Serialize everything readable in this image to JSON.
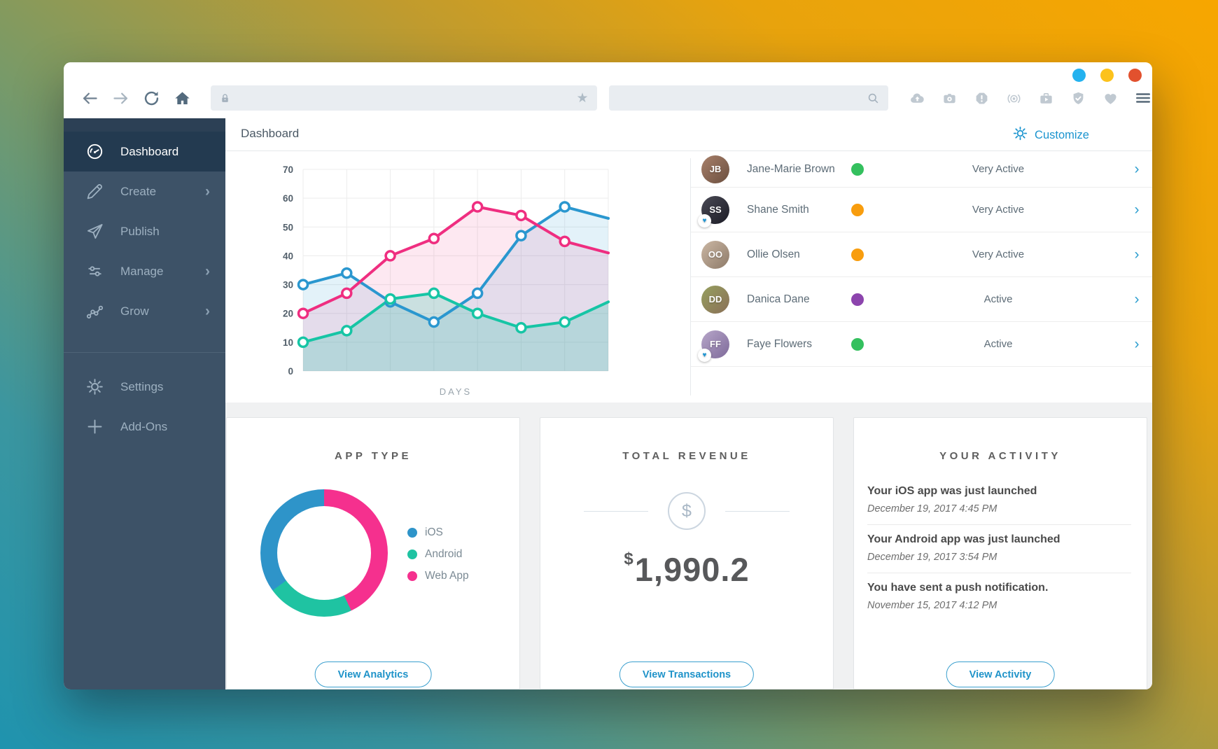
{
  "window_controls": {
    "dots": [
      {
        "name": "blue",
        "color": "#24b2ef"
      },
      {
        "name": "yellow",
        "color": "#fcc21c"
      },
      {
        "name": "red",
        "color": "#e2512e"
      }
    ]
  },
  "browser": {
    "address_bar": {
      "value": "",
      "left_icon": "lock-icon",
      "right_icon": "bookmark-star-icon"
    },
    "search_bar": {
      "value": "",
      "icon": "search-icon"
    },
    "toolbar_icons": [
      "cloud-upload-icon",
      "camera-icon",
      "alert-icon",
      "broadcast-icon",
      "media-briefcase-icon",
      "shield-check-icon",
      "heart-icon"
    ],
    "menu_icon": "hamburger-menu-icon"
  },
  "sidebar": {
    "items": [
      {
        "label": "Dashboard",
        "icon": "gauge-icon",
        "active": true,
        "chevron": false
      },
      {
        "label": "Create",
        "icon": "pencil-icon",
        "active": false,
        "chevron": true
      },
      {
        "label": "Publish",
        "icon": "paper-plane-icon",
        "active": false,
        "chevron": false
      },
      {
        "label": "Manage",
        "icon": "sliders-icon",
        "active": false,
        "chevron": true
      },
      {
        "label": "Grow",
        "icon": "growth-icon",
        "active": false,
        "chevron": true
      }
    ],
    "footer_items": [
      {
        "label": "Settings",
        "icon": "gear-icon",
        "chevron": false
      },
      {
        "label": "Add-Ons",
        "icon": "plus-icon",
        "chevron": false
      }
    ]
  },
  "header": {
    "title": "Dashboard",
    "customize": {
      "label": "Customize",
      "icon": "gear-icon",
      "color": "#1b94cf"
    }
  },
  "users": [
    {
      "name": "Jane-Marie Brown",
      "status": "Very Active",
      "status_color": "#34c05e",
      "initials": "JB",
      "avatar_colors": [
        "#a8806a",
        "#6b4f3f"
      ],
      "favorite": false
    },
    {
      "name": "Shane Smith",
      "status": "Very Active",
      "status_color": "#f89d0e",
      "initials": "SS",
      "avatar_colors": [
        "#4a4a55",
        "#1c1c26"
      ],
      "favorite": true
    },
    {
      "name": "Ollie Olsen",
      "status": "Very Active",
      "status_color": "#f89d0e",
      "initials": "OO",
      "avatar_colors": [
        "#cbb7a4",
        "#8d7a68"
      ],
      "favorite": false
    },
    {
      "name": "Danica Dane",
      "status": "Active",
      "status_color": "#8c44ad",
      "initials": "DD",
      "avatar_colors": [
        "#96a05f",
        "#8a6f57"
      ],
      "favorite": false
    },
    {
      "name": "Faye Flowers",
      "status": "Active",
      "status_color": "#34c05e",
      "initials": "FF",
      "avatar_colors": [
        "#b7a6c9",
        "#7e6a9a"
      ],
      "favorite": true
    }
  ],
  "cards": {
    "app_type": {
      "title": "APP TYPE",
      "button": "View Analytics"
    },
    "revenue": {
      "title": "TOTAL REVENUE",
      "currency": "$",
      "amount": "1,990.2",
      "dollar_icon": "dollar-circle-icon",
      "button": "View Transactions"
    },
    "activity": {
      "title": "YOUR ACTIVITY",
      "items": [
        {
          "text": "Your iOS app was just launched",
          "date": "December 19, 2017 4:45 PM"
        },
        {
          "text": "Your Android app was just launched",
          "date": "December 19, 2017 3:54 PM"
        },
        {
          "text": "You have sent a push notification.",
          "date": "November 15, 2017 4:12 PM"
        }
      ],
      "button": "View Activity"
    }
  },
  "chart_data": [
    {
      "type": "line",
      "title": "",
      "xlabel": "DAYS",
      "ylabel": "",
      "ylim": [
        0,
        70
      ],
      "yticks": [
        0,
        10,
        20,
        30,
        40,
        50,
        60,
        70
      ],
      "x": [
        1,
        2,
        3,
        4,
        5,
        6,
        7,
        8
      ],
      "grid": true,
      "area_fill": true,
      "series": [
        {
          "name": "series-blue",
          "color": "#2a97cf",
          "fill_opacity": 0.13,
          "values": [
            30,
            34,
            24,
            17,
            27,
            47,
            57,
            53
          ]
        },
        {
          "name": "series-pink",
          "color": "#ef2e80",
          "fill_opacity": 0.11,
          "values": [
            20,
            27,
            40,
            46,
            57,
            54,
            45,
            41
          ]
        },
        {
          "name": "series-teal",
          "color": "#16c5a5",
          "fill_opacity": 0.22,
          "values": [
            10,
            14,
            25,
            27,
            20,
            15,
            17,
            24
          ]
        }
      ]
    },
    {
      "type": "pie",
      "donut": true,
      "title": "APP TYPE",
      "labels": [
        "iOS",
        "Android",
        "Web App"
      ],
      "values": [
        35,
        22,
        43
      ],
      "colors": [
        "#2e94c9",
        "#1fc3a2",
        "#f5308e"
      ],
      "start": "top",
      "direction": "clockwise",
      "draw_order": [
        2,
        1,
        0
      ],
      "legend_position": "right"
    }
  ]
}
